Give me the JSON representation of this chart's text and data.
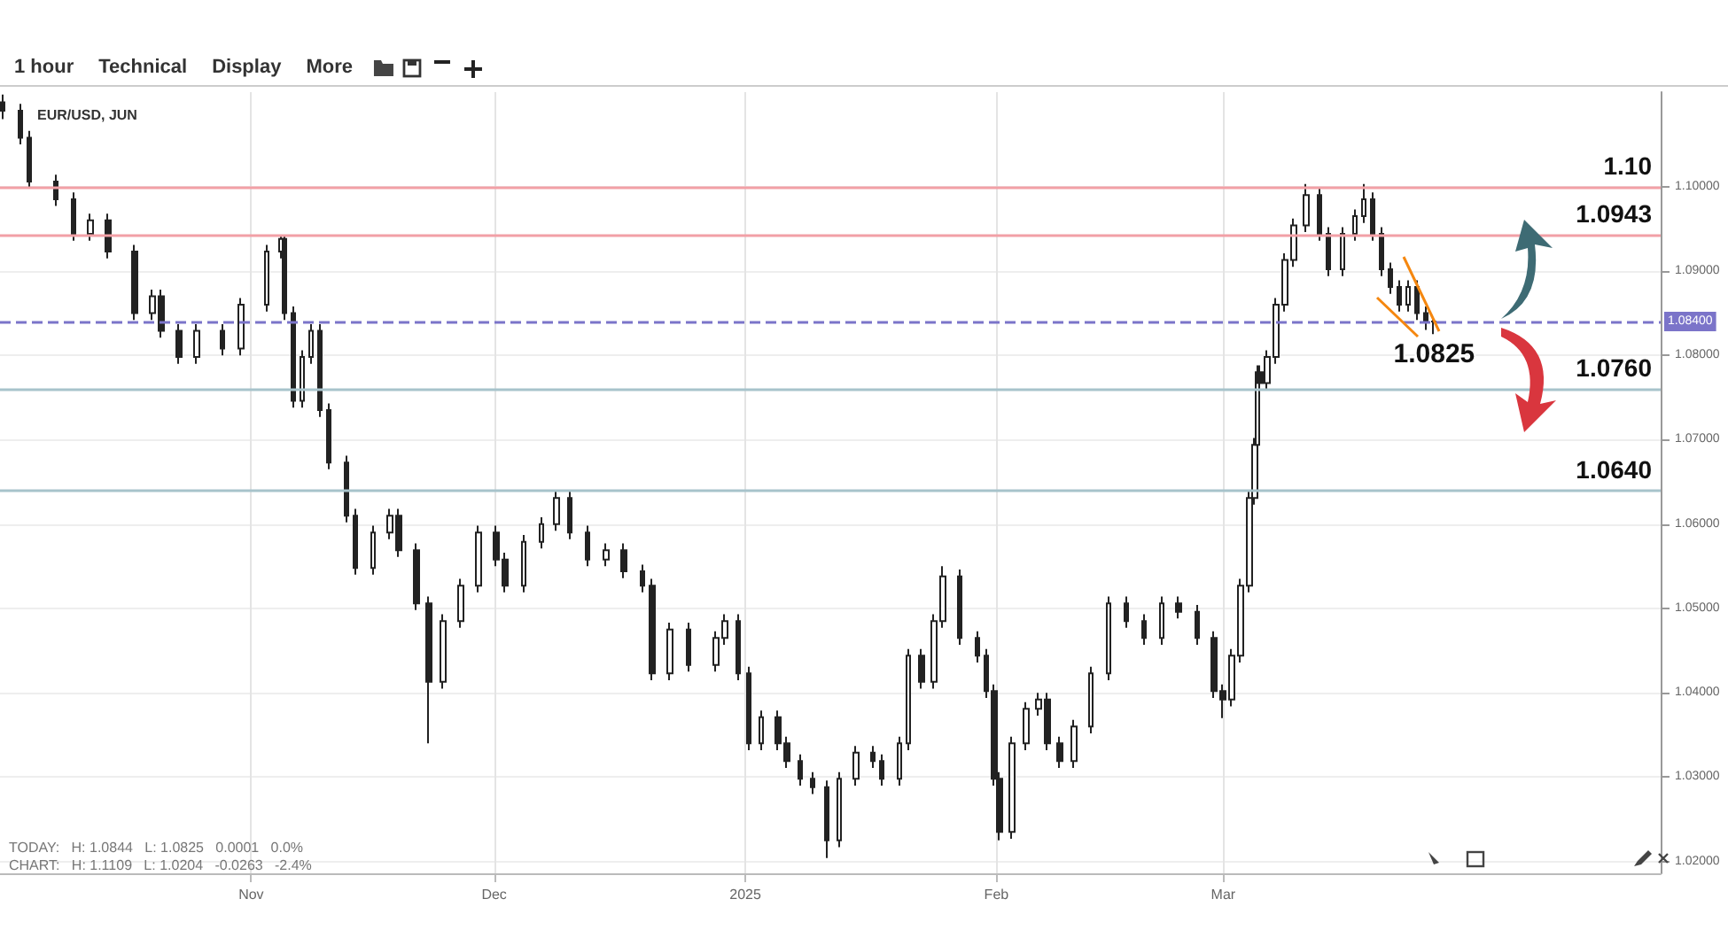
{
  "chart_data": {
    "type": "candlestick",
    "title": "EUR/USD, JUN",
    "color": "#222222",
    "grid": true,
    "x": [
      "2024-10-01T08:00",
      "2024-10-03T12:00",
      "2024-10-04T15:00",
      "2024-10-07T21:00",
      "2024-10-10T01:00",
      "2024-10-12T05:00",
      "2024-10-14T09:00",
      "2024-10-17T16:00",
      "2024-10-19T20:00",
      "2024-10-20T22:00",
      "2024-10-23T02:00",
      "2024-10-25T06:00",
      "2024-10-28T12:00",
      "2024-10-30T17:00",
      "2024-11-02T23:00",
      "2024-11-04T17:00",
      "2024-11-05T03:00",
      "2024-11-06T05:00",
      "2024-11-07T07:00",
      "2024-11-08T09:00",
      "2024-11-09T12:00",
      "2024-11-10T14:00",
      "2024-11-12T18:00",
      "2024-11-13T20:00",
      "2024-11-16T00:00",
      "2024-11-18T04:00",
      "2024-11-19T06:00",
      "2024-11-21T10:00",
      "2024-11-22T23:00",
      "2024-11-24T17:00",
      "2024-11-26T21:00",
      "2024-11-29T01:00",
      "2024-12-01T05:00",
      "2024-12-02T09:00",
      "2024-12-04T15:00",
      "2024-12-06T21:00",
      "2024-12-08T17:00",
      "2024-12-10T07:00",
      "2024-12-12T13:00",
      "2024-12-14T19:00",
      "2024-12-17T01:00",
      "2024-12-19T08:00",
      "2024-12-20T11:00",
      "2024-12-22T17:00",
      "2024-12-24T23:00",
      "2024-12-28T09:00",
      "2024-12-29T12:00",
      "2024-12-31T02:00",
      "2025-01-01T10:00",
      "2025-01-02T22:00",
      "2025-01-05T01:00",
      "2025-01-06T03:00",
      "2025-01-07T20:00",
      "2025-01-09T08:00",
      "2025-01-11T01:00",
      "2025-01-12T13:00",
      "2025-01-14T16:00",
      "2025-01-16T19:00",
      "2025-01-17T21:00",
      "2025-01-20T00:00",
      "2025-01-21T02:00",
      "2025-01-22T19:00",
      "2025-01-24T07:00",
      "2025-01-25T09:00",
      "2025-01-27T12:00",
      "2025-01-29T15:00",
      "2025-01-30T17:00",
      "2025-01-31T18:00",
      "2025-02-01T10:00",
      "2025-02-02T23:00",
      "2025-02-04T17:00",
      "2025-02-06T05:00",
      "2025-02-07T07:00",
      "2025-02-08T19:00",
      "2025-02-10T13:00",
      "2025-02-12T17:00",
      "2025-02-14T21:00",
      "2025-02-17T01:00",
      "2025-02-19T05:00",
      "2025-02-21T09:00",
      "2025-02-23T13:00",
      "2025-02-25T18:00",
      "2025-02-27T22:00",
      "2025-03-01T00:00",
      "2025-03-02T02:00",
      "2025-03-03T04:00",
      "2025-03-04T06:00",
      "2025-03-04T22:00",
      "2025-03-05T05:00",
      "2025-03-05T13:00",
      "2025-03-06T10:00",
      "2025-03-07T12:00",
      "2025-03-08T14:00",
      "2025-03-09T16:00",
      "2025-03-11T05:00",
      "2025-03-12T22:00",
      "2025-03-14T00:00",
      "2025-03-15T18:00",
      "2025-03-17T06:00",
      "2025-03-18T08:00",
      "2025-03-19T11:00",
      "2025-03-20T13:00",
      "2025-03-21T15:00",
      "2025-03-22T17:00",
      "2025-03-23T19:00",
      "2025-03-24T21:00",
      "2025-03-25T23:00",
      "2025-03-27T01:00"
    ],
    "ohlc": [
      [
        1.11,
        1.1109,
        1.108,
        1.109
      ],
      [
        1.109,
        1.1098,
        1.105,
        1.1058
      ],
      [
        1.1058,
        1.1066,
        1.0998,
        1.1006
      ],
      [
        1.1006,
        1.1014,
        1.0977,
        1.0985
      ],
      [
        1.0985,
        1.0993,
        1.0936,
        1.0944
      ],
      [
        1.0944,
        1.0968,
        1.0936,
        1.096
      ],
      [
        1.096,
        1.0968,
        1.0915,
        1.0923
      ],
      [
        1.0923,
        1.0931,
        1.0842,
        1.085
      ],
      [
        1.085,
        1.0878,
        1.0842,
        1.087
      ],
      [
        1.087,
        1.0878,
        1.0821,
        1.0829
      ],
      [
        1.0829,
        1.0837,
        1.079,
        1.0798
      ],
      [
        1.0798,
        1.0837,
        1.079,
        1.0829
      ],
      [
        1.0829,
        1.0837,
        1.08,
        1.0808
      ],
      [
        1.0808,
        1.0868,
        1.08,
        1.086
      ],
      [
        1.086,
        1.0931,
        1.0852,
        1.0923
      ],
      [
        1.0923,
        1.0943,
        1.0915,
        1.0938
      ],
      [
        1.0938,
        1.0943,
        1.0842,
        1.085
      ],
      [
        1.085,
        1.0858,
        1.0738,
        1.0746
      ],
      [
        1.0746,
        1.0806,
        1.0738,
        1.0798
      ],
      [
        1.0798,
        1.0837,
        1.079,
        1.0829
      ],
      [
        1.0829,
        1.0837,
        1.0727,
        1.0735
      ],
      [
        1.0735,
        1.0743,
        1.0665,
        1.0673
      ],
      [
        1.0673,
        1.0681,
        1.0602,
        1.061
      ],
      [
        1.061,
        1.0618,
        1.054,
        1.0548
      ],
      [
        1.0548,
        1.0598,
        1.054,
        1.059
      ],
      [
        1.059,
        1.0618,
        1.0582,
        1.061
      ],
      [
        1.061,
        1.0618,
        1.0561,
        1.0569
      ],
      [
        1.0569,
        1.0577,
        1.0498,
        1.0506
      ],
      [
        1.0506,
        1.0514,
        1.034,
        1.0413
      ],
      [
        1.0413,
        1.0493,
        1.0405,
        1.0485
      ],
      [
        1.0485,
        1.0535,
        1.0477,
        1.0527
      ],
      [
        1.0527,
        1.0598,
        1.0519,
        1.059
      ],
      [
        1.059,
        1.0598,
        1.055,
        1.0558
      ],
      [
        1.0558,
        1.0566,
        1.0519,
        1.0527
      ],
      [
        1.0527,
        1.0587,
        1.0519,
        1.0579
      ],
      [
        1.0579,
        1.0608,
        1.0571,
        1.06
      ],
      [
        1.06,
        1.064,
        1.0592,
        1.0631
      ],
      [
        1.0631,
        1.0639,
        1.0582,
        1.059
      ],
      [
        1.059,
        1.0598,
        1.055,
        1.0558
      ],
      [
        1.0558,
        1.0577,
        1.055,
        1.0569
      ],
      [
        1.0569,
        1.0577,
        1.0536,
        1.0544
      ],
      [
        1.0544,
        1.0552,
        1.0519,
        1.0527
      ],
      [
        1.0527,
        1.0535,
        1.0415,
        1.0423
      ],
      [
        1.0423,
        1.0483,
        1.0415,
        1.0475
      ],
      [
        1.0475,
        1.0483,
        1.0425,
        1.0433
      ],
      [
        1.0433,
        1.0473,
        1.0425,
        1.0465
      ],
      [
        1.0465,
        1.0493,
        1.0457,
        1.0485
      ],
      [
        1.0485,
        1.0493,
        1.0415,
        1.0423
      ],
      [
        1.0423,
        1.0431,
        1.0332,
        1.034
      ],
      [
        1.034,
        1.0379,
        1.0332,
        1.0371
      ],
      [
        1.0371,
        1.0379,
        1.0332,
        1.034
      ],
      [
        1.034,
        1.0348,
        1.0311,
        1.0319
      ],
      [
        1.0319,
        1.0327,
        1.029,
        1.0298
      ],
      [
        1.0298,
        1.0306,
        1.028,
        1.0288
      ],
      [
        1.0288,
        1.0296,
        1.0204,
        1.0225
      ],
      [
        1.0225,
        1.0306,
        1.0217,
        1.0298
      ],
      [
        1.0298,
        1.0337,
        1.029,
        1.0329
      ],
      [
        1.0329,
        1.0337,
        1.0311,
        1.0319
      ],
      [
        1.0319,
        1.0327,
        1.029,
        1.0298
      ],
      [
        1.0298,
        1.0348,
        1.029,
        1.034
      ],
      [
        1.034,
        1.0452,
        1.0332,
        1.0444
      ],
      [
        1.0444,
        1.0452,
        1.0405,
        1.0413
      ],
      [
        1.0413,
        1.0493,
        1.0405,
        1.0485
      ],
      [
        1.0485,
        1.055,
        1.0477,
        1.0538
      ],
      [
        1.0538,
        1.0546,
        1.0457,
        1.0465
      ],
      [
        1.0465,
        1.0473,
        1.0436,
        1.0444
      ],
      [
        1.0444,
        1.0452,
        1.0394,
        1.0402
      ],
      [
        1.0402,
        1.041,
        1.029,
        1.0298
      ],
      [
        1.0298,
        1.0306,
        1.0225,
        1.0235
      ],
      [
        1.0235,
        1.0348,
        1.0227,
        1.034
      ],
      [
        1.034,
        1.0389,
        1.0332,
        1.0381
      ],
      [
        1.0381,
        1.04,
        1.0373,
        1.0392
      ],
      [
        1.0392,
        1.04,
        1.0332,
        1.034
      ],
      [
        1.034,
        1.0348,
        1.0311,
        1.0319
      ],
      [
        1.0319,
        1.0368,
        1.0311,
        1.036
      ],
      [
        1.036,
        1.0431,
        1.0352,
        1.0423
      ],
      [
        1.0423,
        1.0514,
        1.0415,
        1.0506
      ],
      [
        1.0506,
        1.0514,
        1.0477,
        1.0485
      ],
      [
        1.0485,
        1.0493,
        1.0457,
        1.0465
      ],
      [
        1.0465,
        1.0514,
        1.0457,
        1.0506
      ],
      [
        1.0506,
        1.0514,
        1.0488,
        1.0496
      ],
      [
        1.0496,
        1.0504,
        1.0457,
        1.0465
      ],
      [
        1.0465,
        1.0473,
        1.0394,
        1.0402
      ],
      [
        1.0402,
        1.041,
        1.037,
        1.0392
      ],
      [
        1.0392,
        1.0452,
        1.0384,
        1.0444
      ],
      [
        1.0444,
        1.0535,
        1.0436,
        1.0527
      ],
      [
        1.0527,
        1.0639,
        1.0519,
        1.0631
      ],
      [
        1.0631,
        1.0702,
        1.0623,
        1.0694
      ],
      [
        1.0694,
        1.0788,
        1.0686,
        1.078
      ],
      [
        1.078,
        1.0788,
        1.076,
        1.0767
      ],
      [
        1.0767,
        1.0806,
        1.076,
        1.0798
      ],
      [
        1.0798,
        1.0868,
        1.079,
        1.086
      ],
      [
        1.086,
        1.0921,
        1.0852,
        1.0913
      ],
      [
        1.0913,
        1.0962,
        1.0905,
        1.0954
      ],
      [
        1.0954,
        1.1003,
        1.0946,
        1.099
      ],
      [
        1.099,
        1.0998,
        1.0936,
        1.0944
      ],
      [
        1.0944,
        1.0952,
        1.0894,
        1.0902
      ],
      [
        1.0902,
        1.0952,
        1.0894,
        1.0944
      ],
      [
        1.0944,
        1.0973,
        1.0936,
        1.0965
      ],
      [
        1.0965,
        1.1003,
        1.0957,
        1.0985
      ],
      [
        1.0985,
        1.0993,
        1.0936,
        1.0944
      ],
      [
        1.0944,
        1.0952,
        1.0894,
        1.0902
      ],
      [
        1.0902,
        1.091,
        1.0873,
        1.0881
      ],
      [
        1.0881,
        1.0889,
        1.0852,
        1.086
      ],
      [
        1.086,
        1.0889,
        1.0852,
        1.0881
      ],
      [
        1.0881,
        1.0889,
        1.0842,
        1.085
      ],
      [
        1.085,
        1.0858,
        1.083,
        1.084
      ],
      [
        1.084,
        1.0844,
        1.0825,
        1.084
      ]
    ],
    "xlim": [
      "2024-10-01T00:00",
      "2025-04-24T00:00"
    ],
    "xticks": [
      {
        "value": "2024-11-01",
        "label": "Nov"
      },
      {
        "value": "2024-12-01",
        "label": "Dec"
      },
      {
        "value": "2025-01-01",
        "label": "2025"
      },
      {
        "value": "2025-02-01",
        "label": "Feb"
      },
      {
        "value": "2025-03-01",
        "label": "Mar"
      }
    ],
    "ylim": [
      1.0186,
      1.1112
    ],
    "yticks": [
      {
        "value": 1.02,
        "label": "1.02000"
      },
      {
        "value": 1.03,
        "label": "1.03000"
      },
      {
        "value": 1.04,
        "label": "1.04000"
      },
      {
        "value": 1.05,
        "label": "1.05000"
      },
      {
        "value": 1.06,
        "label": "1.06000"
      },
      {
        "value": 1.07,
        "label": "1.07000"
      },
      {
        "value": 1.08,
        "label": "1.08000"
      },
      {
        "value": 1.09,
        "label": "1.09000"
      },
      {
        "value": 1.1,
        "label": "1.10000"
      }
    ],
    "ref_lines": [
      {
        "axis": "y",
        "value": 1.1,
        "label": "1.10",
        "color": "#f2a0a6"
      },
      {
        "axis": "y",
        "value": 1.0943,
        "label": "1.0943",
        "color": "#f2a0a6"
      },
      {
        "axis": "y",
        "value": 1.084,
        "label": "1.08400",
        "color": "#7b74c9",
        "line_style": "dashed"
      },
      {
        "axis": "y",
        "value": 1.076,
        "label": "1.0760",
        "color": "#a7c3cb"
      },
      {
        "axis": "y",
        "value": 1.064,
        "label": "1.0640",
        "color": "#a7c3cb"
      }
    ],
    "annotations": [
      "1 hour",
      "Technical",
      "Display",
      "More",
      "TODAY:   H: 1.0844   L: 1.0825   0.0001   0.0%",
      "CHART:   H: 1.1109   L: 1.0204   -0.0263   -2.4%",
      {
        "text": "1.0825",
        "x": "2025-03-27T01:00",
        "y": 1.0825
      }
    ]
  }
}
